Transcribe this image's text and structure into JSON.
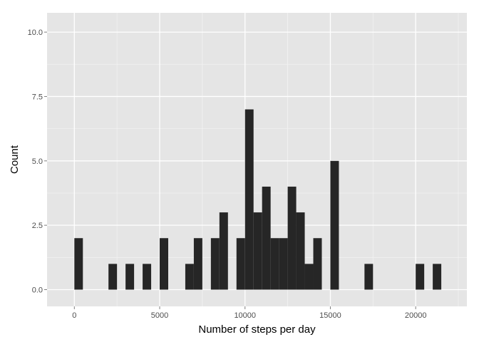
{
  "chart_data": {
    "type": "bar",
    "xlabel": "Number of steps per day",
    "ylabel": "Count",
    "xlim": [
      -1600,
      23000
    ],
    "ylim": [
      -0.65,
      10.75
    ],
    "binwidth": 500,
    "x_ticks": [
      0,
      5000,
      10000,
      15000,
      20000
    ],
    "x_tick_labels": [
      "0",
      "5000",
      "10000",
      "15000",
      "20000"
    ],
    "y_ticks": [
      0,
      2.5,
      5,
      7.5,
      10
    ],
    "y_tick_labels": [
      "0.0",
      "2.5",
      "5.0",
      "7.5",
      "10.0"
    ],
    "bins": [
      {
        "x": 250,
        "count": 2
      },
      {
        "x": 2250,
        "count": 1
      },
      {
        "x": 3250,
        "count": 1
      },
      {
        "x": 4250,
        "count": 1
      },
      {
        "x": 5250,
        "count": 2
      },
      {
        "x": 6750,
        "count": 1
      },
      {
        "x": 7250,
        "count": 2
      },
      {
        "x": 8250,
        "count": 2
      },
      {
        "x": 8750,
        "count": 3
      },
      {
        "x": 9750,
        "count": 2
      },
      {
        "x": 10250,
        "count": 7
      },
      {
        "x": 10750,
        "count": 3
      },
      {
        "x": 11250,
        "count": 4
      },
      {
        "x": 11750,
        "count": 2
      },
      {
        "x": 12250,
        "count": 2
      },
      {
        "x": 12750,
        "count": 4
      },
      {
        "x": 13250,
        "count": 3
      },
      {
        "x": 13750,
        "count": 1
      },
      {
        "x": 14250,
        "count": 2
      },
      {
        "x": 15250,
        "count": 5
      },
      {
        "x": 17250,
        "count": 1
      },
      {
        "x": 20250,
        "count": 1
      },
      {
        "x": 21250,
        "count": 1
      }
    ],
    "grid": true,
    "colors": {
      "panel": "#e5e5e5",
      "grid_major": "#ffffff",
      "grid_minor": "#f2f2f2",
      "bar": "#262626"
    }
  }
}
